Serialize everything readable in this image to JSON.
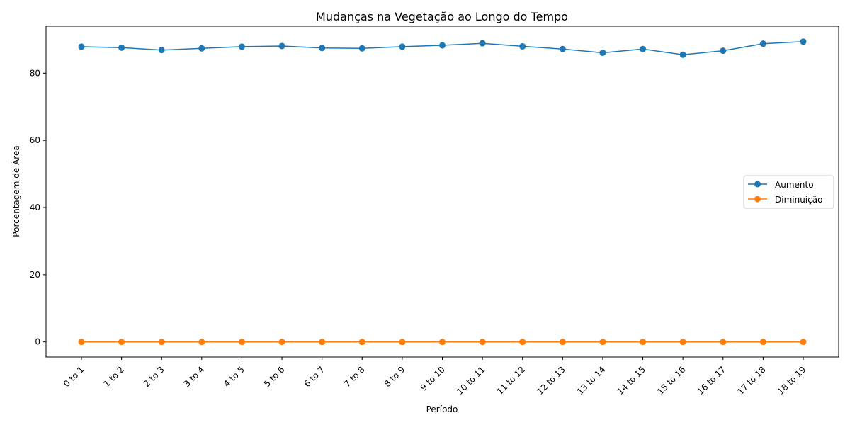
{
  "chart_data": {
    "type": "line",
    "title": "Mudanças na Vegetação ao Longo do Tempo",
    "xlabel": "Período",
    "ylabel": "Porcentagem de Área",
    "categories": [
      "0 to 1",
      "1 to 2",
      "2 to 3",
      "3 to 4",
      "4 to 5",
      "5 to 6",
      "6 to 7",
      "7 to 8",
      "8 to 9",
      "9 to 10",
      "10 to 11",
      "11 to 12",
      "12 to 13",
      "13 to 14",
      "14 to 15",
      "15 to 16",
      "16 to 17",
      "17 to 18",
      "18 to 19"
    ],
    "ylim": [
      -4.5,
      94
    ],
    "yticks": [
      0,
      20,
      40,
      60,
      80
    ],
    "grid": false,
    "legend_position": "center-right",
    "series": [
      {
        "name": "Aumento",
        "color": "#1f77b4",
        "marker": "circle",
        "values": [
          87.9,
          87.6,
          86.9,
          87.4,
          87.9,
          88.1,
          87.5,
          87.4,
          87.9,
          88.3,
          88.9,
          88.0,
          87.2,
          86.1,
          87.2,
          85.5,
          86.7,
          88.8,
          89.4
        ]
      },
      {
        "name": "Diminuição",
        "color": "#ff7f0e",
        "marker": "circle",
        "values": [
          0,
          0,
          0,
          0,
          0,
          0,
          0,
          0,
          0,
          0,
          0,
          0,
          0,
          0,
          0,
          0,
          0,
          0,
          0
        ]
      }
    ]
  }
}
